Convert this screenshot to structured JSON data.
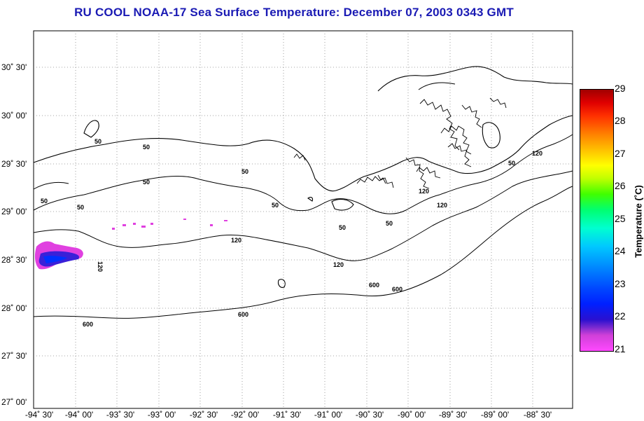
{
  "title": "RU COOL  NOAA-17  Sea Surface Temperature:  December 07, 2003 0343 GMT",
  "lat_labels": [
    "30˚ 30'",
    "30˚ 00'",
    "29˚ 30'",
    "29˚ 00'",
    "28˚ 30'",
    "28˚ 00'",
    "27˚ 30'",
    "27˚ 00'"
  ],
  "lon_labels": [
    "-94˚ 30'",
    "-94˚ 00'",
    "-93˚ 30'",
    "-93˚ 00'",
    "-92˚ 30'",
    "-92˚ 00'",
    "-91˚ 30'",
    "-91˚ 00'",
    "-90˚ 30'",
    "-90˚ 00'",
    "-89˚ 30'",
    "-89˚ 00'",
    "-88˚ 30'"
  ],
  "colorbar": {
    "title": "Temperature (˚C)",
    "ticks": [
      "29",
      "28",
      "27",
      "26",
      "25",
      "24",
      "23",
      "22",
      "21"
    ],
    "min": 21,
    "max": 29
  },
  "contour_labels": [
    "50",
    "50",
    "50",
    "50",
    "50",
    "50",
    "50",
    "50",
    "50",
    "120",
    "120",
    "120",
    "120",
    "120",
    "600",
    "600",
    "600",
    "600",
    "120",
    "50"
  ],
  "colors": {
    "title": "#1a1ab4",
    "grid": "#888888",
    "contour": "#000000"
  }
}
